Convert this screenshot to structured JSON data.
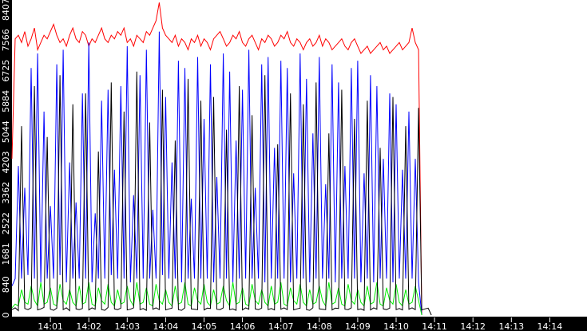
{
  "chart_data": {
    "type": "line",
    "title": "",
    "xlabel": "",
    "ylabel": "",
    "x_start": "14:00:00",
    "x_step_seconds": 5,
    "x_range": [
      "14:00",
      "14:15"
    ],
    "ylim": [
      0,
      8670
    ],
    "y_ticks": [
      "0",
      "840",
      "1681",
      "2522",
      "3362",
      "4203",
      "5044",
      "5884",
      "6725",
      "7566",
      "8407"
    ],
    "x_ticks": [
      "14:01",
      "14:02",
      "14:03",
      "14:04",
      "14:05",
      "14:06",
      "14:07",
      "14:08",
      "14:09",
      "14:10",
      "14:11",
      "14:12",
      "14:13",
      "14:14"
    ],
    "grid": false,
    "background": "#ffffff",
    "series": [
      {
        "color": "#ff0000",
        "values": [
          4300,
          7600,
          7700,
          7500,
          7800,
          7400,
          7600,
          7900,
          7300,
          7500,
          7700,
          7600,
          7800,
          8000,
          7700,
          7500,
          7600,
          7400,
          7700,
          7900,
          7600,
          7500,
          7800,
          7700,
          7400,
          7600,
          7500,
          7700,
          7900,
          7600,
          7500,
          7700,
          7600,
          7800,
          7700,
          7900,
          7500,
          7600,
          7400,
          7700,
          7600,
          7500,
          7800,
          7700,
          7900,
          8100,
          8600,
          7900,
          7700,
          7600,
          7500,
          7700,
          7400,
          7600,
          7500,
          7300,
          7600,
          7500,
          7700,
          7400,
          7600,
          7500,
          7300,
          7600,
          7700,
          7800,
          7600,
          7400,
          7500,
          7700,
          7600,
          7800,
          7500,
          7400,
          7600,
          7700,
          7500,
          7300,
          7600,
          7500,
          7700,
          7600,
          7400,
          7500,
          7700,
          7600,
          7800,
          7500,
          7400,
          7600,
          7500,
          7300,
          7500,
          7600,
          7400,
          7500,
          7700,
          7400,
          7600,
          7500,
          7300,
          7400,
          7500,
          7600,
          7400,
          7300,
          7500,
          7600,
          7400,
          7200,
          7300,
          7400,
          7200,
          7300,
          7400,
          7500,
          7300,
          7400,
          7200,
          7300,
          7400,
          7500,
          7300,
          7400,
          7500,
          7900,
          7500,
          7300,
          0
        ]
      },
      {
        "color": "#0000ff",
        "values": [
          800,
          1000,
          4100,
          1000,
          3500,
          1100,
          6800,
          1000,
          7200,
          900,
          5600,
          1000,
          3000,
          1000,
          6900,
          1100,
          7300,
          900,
          4200,
          1000,
          3100,
          1000,
          6100,
          1000,
          7500,
          900,
          2800,
          1000,
          5900,
          1000,
          6200,
          1100,
          4000,
          1000,
          6300,
          1000,
          7400,
          900,
          3300,
          1000,
          6600,
          1000,
          7300,
          1000,
          2900,
          1000,
          7800,
          1100,
          6000,
          1000,
          4200,
          1000,
          7000,
          900,
          6800,
          1000,
          3200,
          1000,
          7100,
          1000,
          5400,
          1000,
          6900,
          900,
          3800,
          1000,
          7200,
          1000,
          6700,
          900,
          4800,
          1000,
          6200,
          1000,
          7300,
          1000,
          3500,
          1000,
          6900,
          900,
          7100,
          1000,
          4600,
          1000,
          7000,
          1000,
          6800,
          900,
          3900,
          1000,
          7200,
          1000,
          6500,
          900,
          5000,
          1000,
          7100,
          1000,
          3600,
          1000,
          6900,
          900,
          6400,
          1000,
          4100,
          1000,
          6800,
          1000,
          7000,
          900,
          3900,
          1000,
          6600,
          900,
          6300,
          1000,
          4300,
          1000,
          6100,
          900,
          5800,
          1000,
          4000,
          1000,
          5600,
          1000,
          4300,
          900,
          0
        ]
      },
      {
        "color": "#00ee00",
        "values": [
          200,
          300,
          250,
          700,
          350,
          300,
          800,
          400,
          250,
          900,
          300,
          350,
          750,
          300,
          250,
          850,
          400,
          300,
          700,
          350,
          250,
          800,
          300,
          350,
          900,
          300,
          250,
          750,
          400,
          300,
          850,
          350,
          250,
          700,
          300,
          350,
          800,
          400,
          250,
          900,
          300,
          350,
          750,
          300,
          250,
          850,
          400,
          300,
          700,
          350,
          250,
          800,
          300,
          350,
          900,
          300,
          250,
          750,
          400,
          300,
          850,
          350,
          250,
          700,
          300,
          350,
          800,
          400,
          250,
          900,
          300,
          350,
          750,
          300,
          250,
          850,
          400,
          300,
          700,
          350,
          250,
          800,
          300,
          350,
          900,
          300,
          250,
          750,
          400,
          300,
          850,
          350,
          250,
          700,
          300,
          350,
          800,
          400,
          250,
          900,
          300,
          350,
          750,
          300,
          250,
          850,
          400,
          300,
          700,
          350,
          250,
          800,
          300,
          350,
          900,
          300,
          250,
          750,
          400,
          300,
          850,
          350,
          250,
          700,
          300,
          350,
          800,
          400,
          0
        ]
      },
      {
        "color": "#000000",
        "values": [
          150,
          200,
          120,
          5200,
          180,
          150,
          200,
          6300,
          140,
          170,
          210,
          4900,
          160,
          130,
          190,
          6600,
          150,
          200,
          120,
          5800,
          170,
          150,
          180,
          6100,
          140,
          200,
          160,
          4500,
          150,
          130,
          210,
          6400,
          170,
          150,
          190,
          5600,
          140,
          160,
          200,
          6700,
          150,
          180,
          130,
          5300,
          160,
          200,
          150,
          6200,
          140,
          170,
          190,
          4800,
          150,
          130,
          200,
          6500,
          170,
          160,
          150,
          5900,
          140,
          190,
          180,
          6000,
          160,
          150,
          200,
          5100,
          150,
          170,
          130,
          6300,
          140,
          200,
          160,
          5500,
          170,
          150,
          190,
          6600,
          150,
          180,
          140,
          4700,
          160,
          200,
          150,
          6100,
          140,
          170,
          190,
          5800,
          150,
          130,
          200,
          6400,
          170,
          160,
          150,
          5000,
          140,
          190,
          180,
          6200,
          160,
          150,
          200,
          5400,
          150,
          170,
          130,
          5900,
          140,
          200,
          160,
          4600,
          170,
          150,
          190,
          6000,
          150,
          180,
          140,
          5200,
          160,
          200,
          150,
          5700,
          140,
          170,
          190,
          0
        ]
      }
    ]
  }
}
